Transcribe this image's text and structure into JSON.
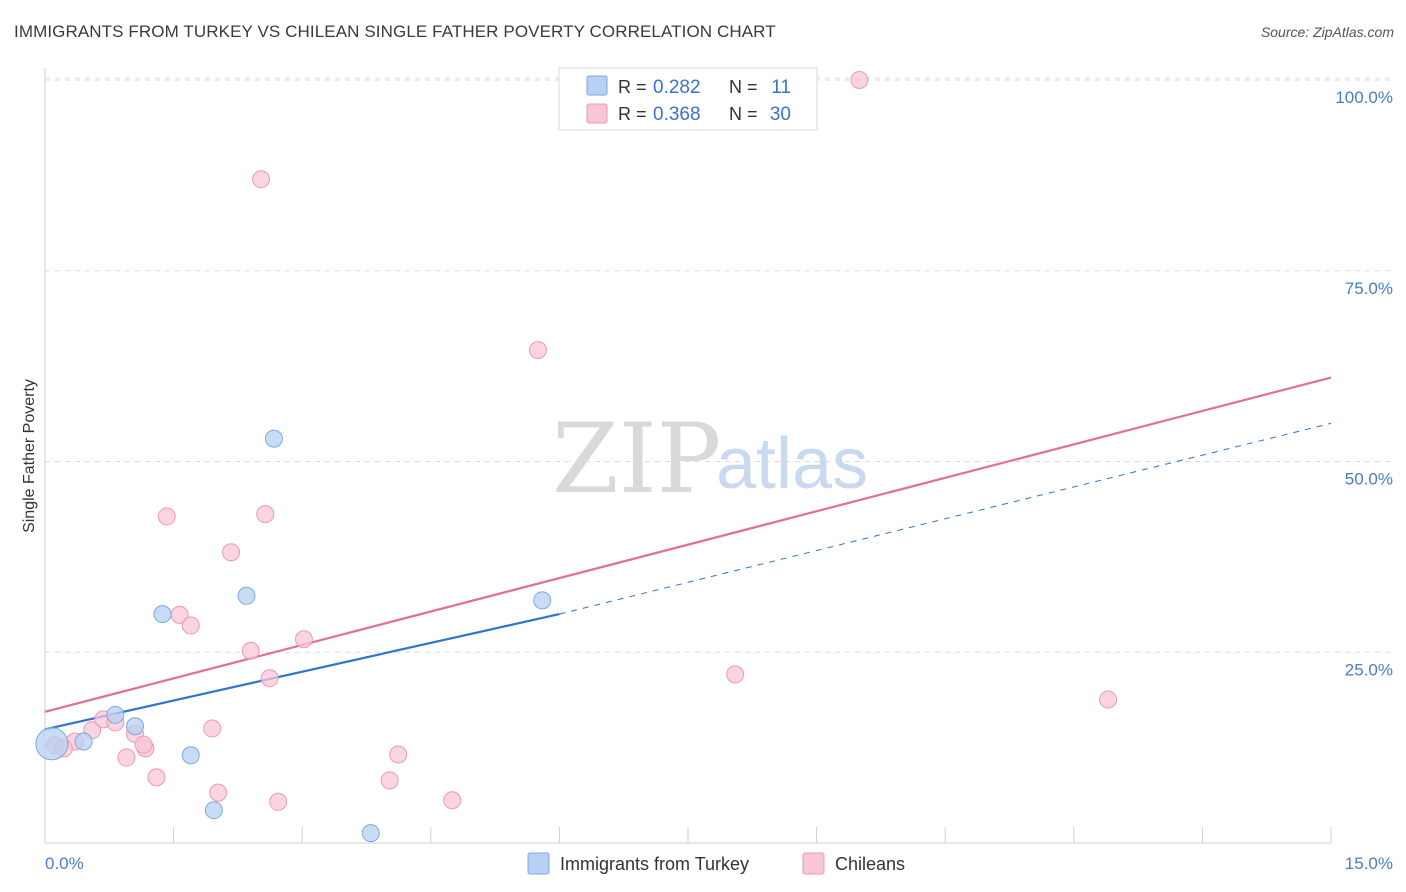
{
  "header": {
    "title": "IMMIGRANTS FROM TURKEY VS CHILEAN SINGLE FATHER POVERTY CORRELATION CHART",
    "source": "Source: ZipAtlas.com"
  },
  "watermark": {
    "zip": "ZIP",
    "atlas": "atlas"
  },
  "legend": {
    "rows": [
      {
        "r_label": "R =",
        "r_value": "0.282",
        "n_label": "N =",
        "n_value": "11",
        "color": "#aecbf2"
      },
      {
        "r_label": "R =",
        "r_value": "0.368",
        "n_label": "N =",
        "n_value": "30",
        "color": "#f7bed0"
      }
    ]
  },
  "colors": {
    "blue_fill": "#b7d0f3",
    "blue_stroke": "#7ea8e0",
    "blue_line": "#2f74d0",
    "pink_fill": "#f8c6d6",
    "pink_stroke": "#eb9ab4",
    "pink_line": "#e0709a",
    "tick_label": "#4a7cc6",
    "grid": "#dcdcdc"
  },
  "chart_data": {
    "type": "scatter",
    "title": "IMMIGRANTS FROM TURKEY VS CHILEAN SINGLE FATHER POVERTY CORRELATION CHART",
    "xlabel": "",
    "ylabel": "Single Father Poverty",
    "xlim": [
      0,
      15
    ],
    "ylim": [
      0,
      100
    ],
    "x_tick_labels": [
      "0.0%",
      "15.0%"
    ],
    "y_ticks": [
      25,
      50,
      75,
      100
    ],
    "y_tick_labels": [
      "25.0%",
      "50.0%",
      "75.0%",
      "100.0%"
    ],
    "series": [
      {
        "name": "Immigrants from Turkey",
        "color": "#b7d0f3",
        "points": [
          {
            "x": 0.08,
            "y": 13.0,
            "big": true
          },
          {
            "x": 0.45,
            "y": 13.3
          },
          {
            "x": 0.82,
            "y": 16.8
          },
          {
            "x": 1.05,
            "y": 15.3
          },
          {
            "x": 1.37,
            "y": 30.0
          },
          {
            "x": 1.7,
            "y": 11.5
          },
          {
            "x": 1.97,
            "y": 4.3
          },
          {
            "x": 2.35,
            "y": 32.4
          },
          {
            "x": 2.67,
            "y": 53.0
          },
          {
            "x": 3.8,
            "y": 1.3
          },
          {
            "x": 5.8,
            "y": 31.8
          }
        ],
        "trend": {
          "x0": 0,
          "y0": 14.9,
          "x1": 6.0,
          "y1": 30.0,
          "dash_to_x": 15,
          "dash_to_y": 55.0
        }
      },
      {
        "name": "Chileans",
        "color": "#f8c6d6",
        "points": [
          {
            "x": 0.12,
            "y": 12.8
          },
          {
            "x": 0.35,
            "y": 13.3
          },
          {
            "x": 0.55,
            "y": 14.8
          },
          {
            "x": 0.68,
            "y": 16.2
          },
          {
            "x": 0.82,
            "y": 15.8
          },
          {
            "x": 0.95,
            "y": 11.2
          },
          {
            "x": 1.05,
            "y": 14.3
          },
          {
            "x": 1.17,
            "y": 12.4
          },
          {
            "x": 1.3,
            "y": 8.6
          },
          {
            "x": 1.42,
            "y": 42.8
          },
          {
            "x": 1.57,
            "y": 29.9
          },
          {
            "x": 1.7,
            "y": 28.5
          },
          {
            "x": 1.95,
            "y": 15.0
          },
          {
            "x": 2.02,
            "y": 6.6
          },
          {
            "x": 2.17,
            "y": 38.1
          },
          {
            "x": 2.4,
            "y": 25.2
          },
          {
            "x": 2.57,
            "y": 43.1
          },
          {
            "x": 2.62,
            "y": 21.6
          },
          {
            "x": 2.52,
            "y": 87.0
          },
          {
            "x": 2.72,
            "y": 5.4
          },
          {
            "x": 3.02,
            "y": 26.7
          },
          {
            "x": 4.02,
            "y": 8.2
          },
          {
            "x": 4.12,
            "y": 11.6
          },
          {
            "x": 4.75,
            "y": 5.6
          },
          {
            "x": 5.75,
            "y": 64.6
          },
          {
            "x": 8.05,
            "y": 22.1
          },
          {
            "x": 9.5,
            "y": 100.0
          },
          {
            "x": 12.4,
            "y": 18.8
          },
          {
            "x": 0.22,
            "y": 12.4
          },
          {
            "x": 1.15,
            "y": 12.9
          }
        ],
        "trend": {
          "x0": 0,
          "y0": 17.2,
          "x1": 15,
          "y1": 61.0
        }
      }
    ]
  }
}
